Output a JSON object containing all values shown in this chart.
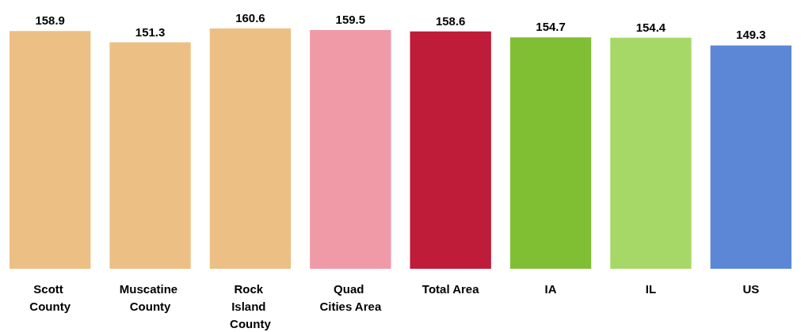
{
  "chart_data": {
    "type": "bar",
    "categories": [
      "Scott County",
      "Muscatine County",
      "Rock Island County",
      "Quad Cities Area",
      "Total Area",
      "IA",
      "IL",
      "US"
    ],
    "values": [
      158.9,
      151.3,
      160.6,
      159.5,
      158.6,
      154.7,
      154.4,
      149.3
    ],
    "colors": [
      "#ecc084",
      "#ecc084",
      "#ecc084",
      "#f09aa8",
      "#bf1c39",
      "#80bf33",
      "#a6d867",
      "#5b87d6"
    ],
    "data_labels": true
  }
}
